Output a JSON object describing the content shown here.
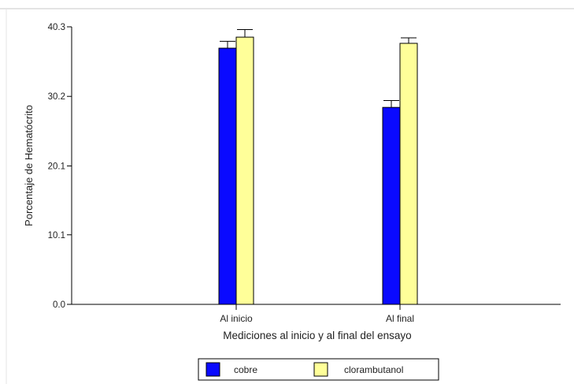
{
  "chart_data": {
    "type": "bar",
    "title": "",
    "xlabel": "Mediciones al inicio y al final del ensayo",
    "ylabel": "Porcentaje de Hematócrito",
    "categories": [
      "Al inicio",
      "Al final"
    ],
    "series": [
      {
        "name": "cobre",
        "values": [
          37.2,
          28.6
        ],
        "error": [
          1.0,
          1.0
        ],
        "color": "#0a0aff"
      },
      {
        "name": "clorambutanol",
        "values": [
          38.8,
          37.9
        ],
        "error": [
          1.1,
          0.8
        ],
        "color": "#ffff99"
      }
    ],
    "yticks": [
      "0.0",
      "10.1",
      "20.1",
      "30.2",
      "40.3"
    ],
    "ylim": [
      0,
      40.3
    ],
    "grid": false,
    "legend_position": "bottom"
  }
}
